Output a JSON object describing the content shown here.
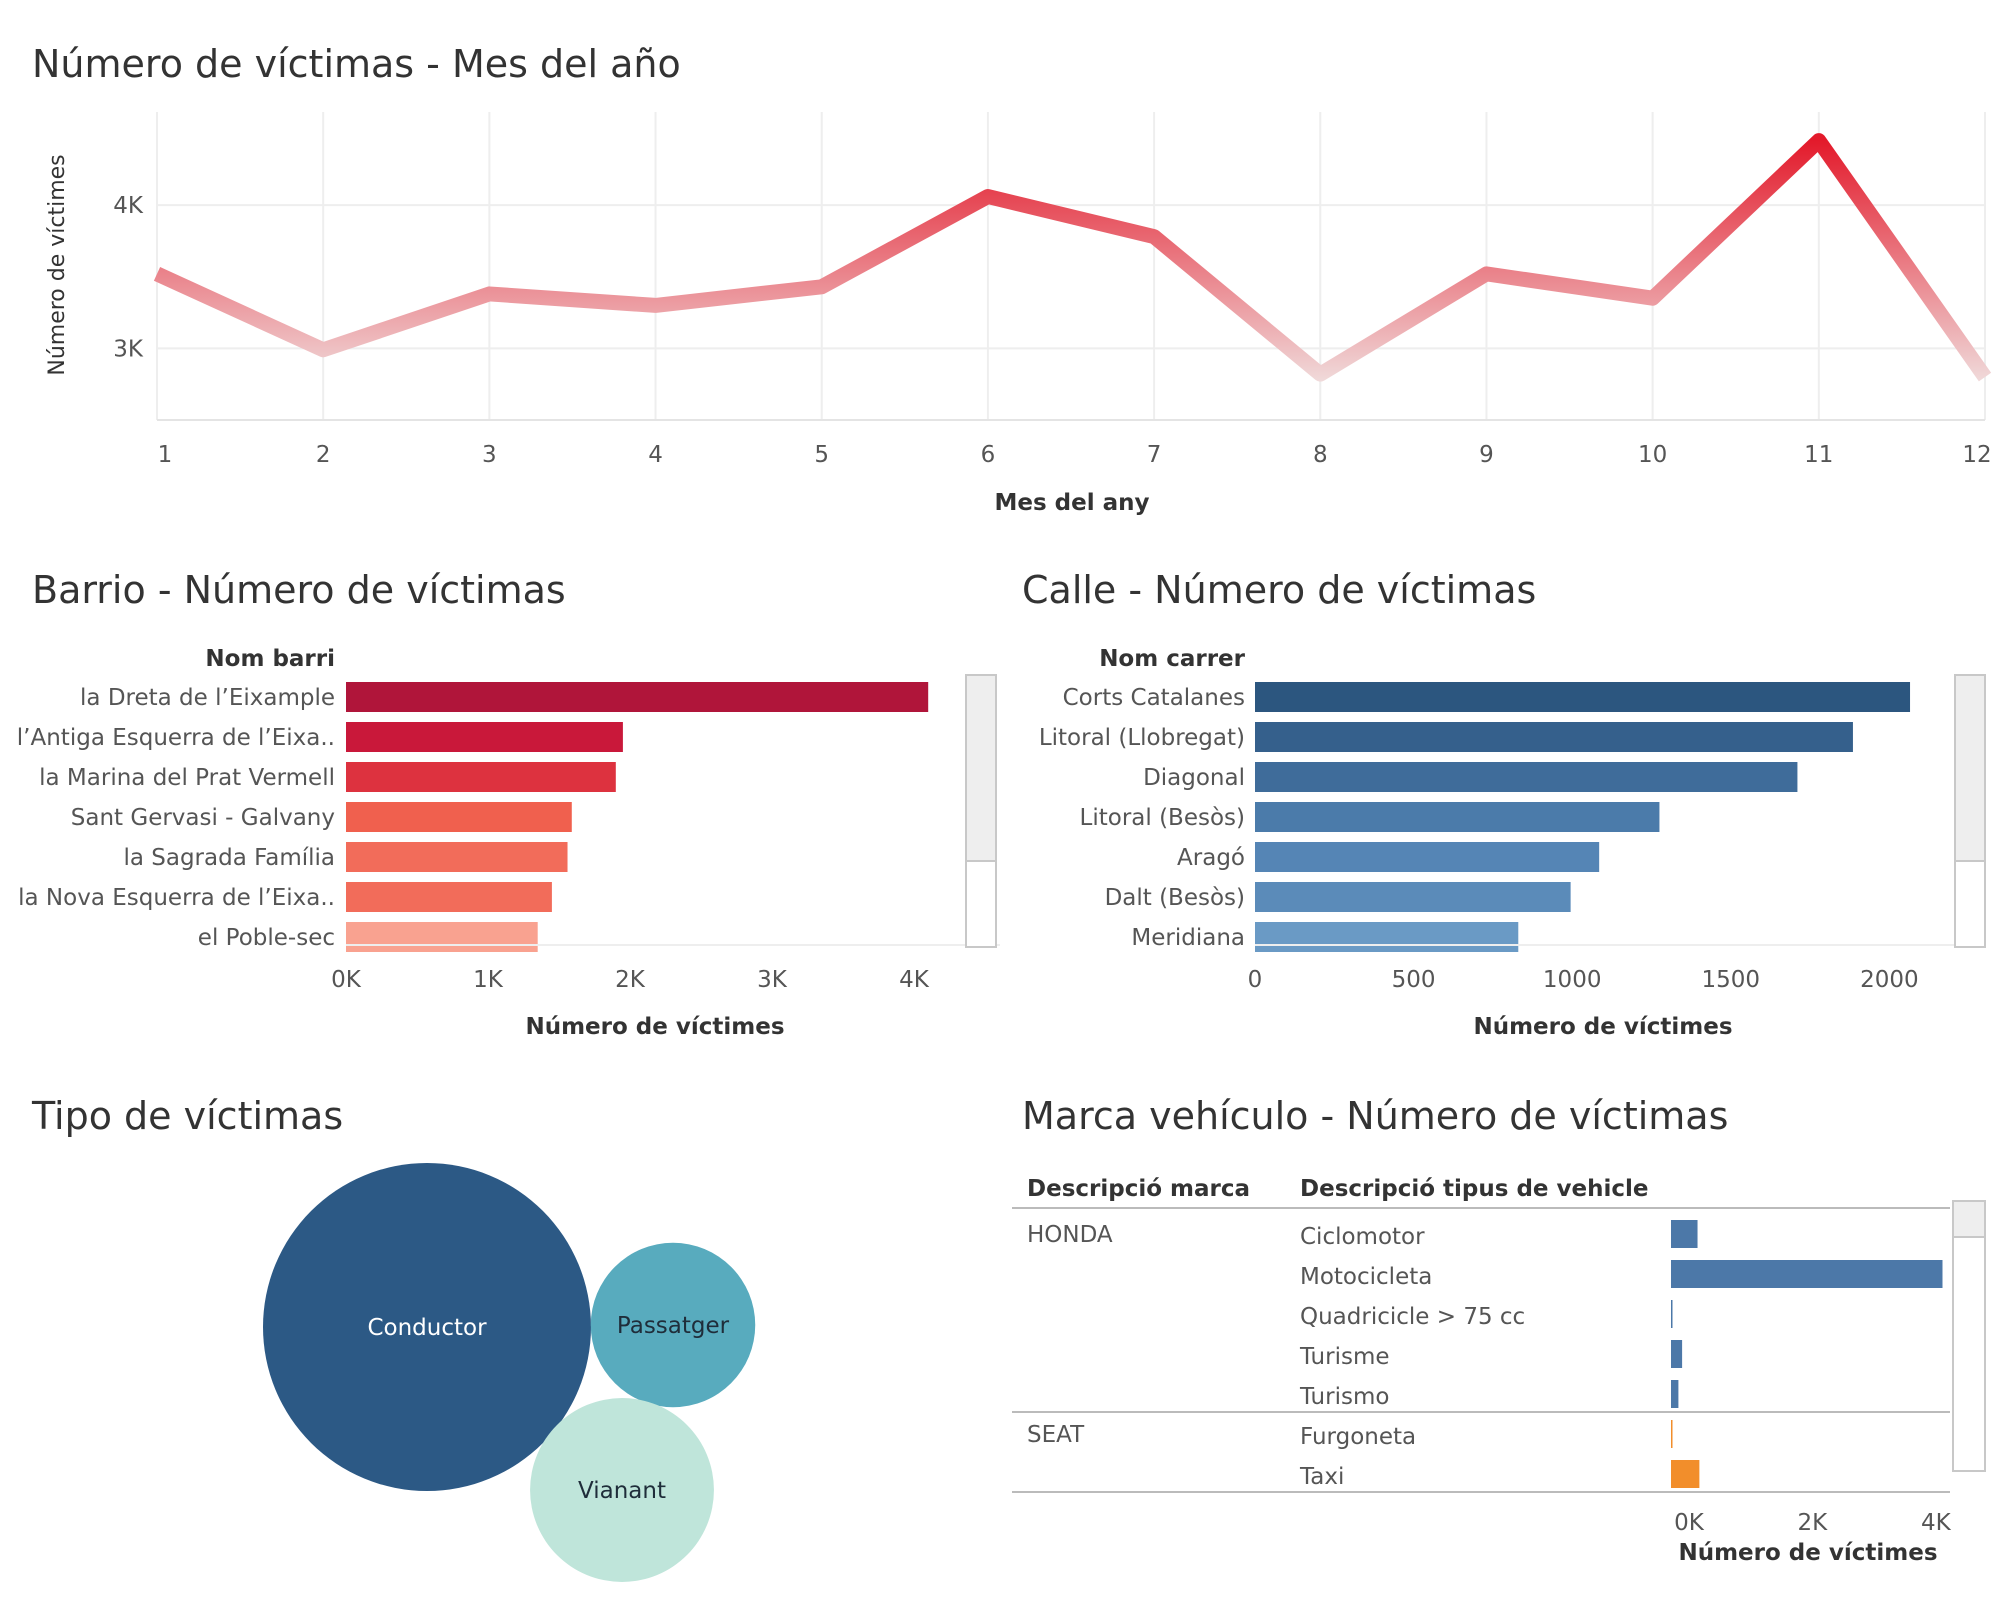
{
  "dashboard": {
    "monthly": {
      "title": "Número de víctimas - Mes del año",
      "chart_data": {
        "type": "line",
        "x": [
          1,
          2,
          3,
          4,
          5,
          6,
          7,
          8,
          9,
          10,
          11,
          12
        ],
        "values": [
          3520,
          2990,
          3380,
          3300,
          3430,
          4060,
          3780,
          2820,
          3520,
          3350,
          4450,
          2800
        ],
        "xlabel": "Mes del any",
        "ylabel": "Número de víctimes",
        "yticks": [
          "3K",
          "4K"
        ],
        "ylim": [
          2500,
          4650
        ],
        "color_low": "#f0dcdc",
        "color_high": "#e31a2b"
      }
    },
    "barrio": {
      "title": "Barrio - Número de víctimas",
      "chart_data": {
        "type": "bar",
        "orientation": "horizontal",
        "column_header": "Nom barri",
        "categories": [
          "la Dreta de l’Eixample",
          "l’Antiga Esquerra de l’Eixa..",
          "la Marina del Prat Vermell",
          "Sant Gervasi - Galvany",
          "la Sagrada Família",
          "la Nova Esquerra de l’Eixa..",
          "el Poble-sec"
        ],
        "values": [
          4100,
          1950,
          1900,
          1590,
          1560,
          1450,
          1350
        ],
        "colors": [
          "#b0153a",
          "#c9183a",
          "#dd323f",
          "#f0604e",
          "#f26c5a",
          "#f26c5a",
          "#f9a290"
        ],
        "xlabel": "Número de víctimes",
        "xticks": [
          "0K",
          "1K",
          "2K",
          "3K",
          "4K"
        ],
        "xlim": [
          0,
          4500
        ]
      }
    },
    "calle": {
      "title": "Calle - Número de víctimas",
      "chart_data": {
        "type": "bar",
        "orientation": "horizontal",
        "column_header": "Nom carrer",
        "categories": [
          "Corts Catalanes",
          "Litoral (Llobregat)",
          "Diagonal",
          "Litoral (Besòs)",
          "Aragó",
          "Dalt (Besòs)",
          "Meridiana"
        ],
        "values": [
          2065,
          1885,
          1710,
          1275,
          1085,
          995,
          830
        ],
        "colors": [
          "#2c567f",
          "#35608c",
          "#3f6c9a",
          "#4b7baa",
          "#5585b5",
          "#5b8bb9",
          "#6a9ac5"
        ],
        "xlabel": "Número de víctimes",
        "xticks": [
          "0",
          "500",
          "1000",
          "1500",
          "2000"
        ],
        "xlim": [
          0,
          2150
        ]
      }
    },
    "tipo": {
      "title": "Tipo de víctimas",
      "chart_data": {
        "type": "bubble",
        "categories": [
          "Conductor",
          "Passatger",
          "Vianant"
        ],
        "values": [
          35000,
          8800,
          11000
        ],
        "colors": [
          "#2c5985",
          "#58abbe",
          "#bfe5da"
        ],
        "label_colors": [
          "#ffffff",
          "#1f2d3a",
          "#1f2d3a"
        ]
      }
    },
    "marca": {
      "title": "Marca vehículo - Número de víctimas",
      "chart_data": {
        "type": "bar",
        "orientation": "horizontal",
        "column_headers": [
          "Descripció marca",
          "Descripció tipus de vehicle"
        ],
        "groups": [
          {
            "brand": "HONDA",
            "color": "#4c78a8",
            "rows": [
              {
                "label": "Ciclomotor",
                "value": 430
              },
              {
                "label": "Motocicleta",
                "value": 4400
              },
              {
                "label": "Quadricicle > 75 cc",
                "value": 20
              },
              {
                "label": "Turisme",
                "value": 180
              },
              {
                "label": "Turismo",
                "value": 120
              }
            ]
          },
          {
            "brand": "SEAT",
            "color": "#f28e2b",
            "rows": [
              {
                "label": "Furgoneta",
                "value": 20
              },
              {
                "label": "Taxi",
                "value": 460
              }
            ]
          }
        ],
        "xlabel": "Número de víctimes",
        "xticks": [
          "0K",
          "2K",
          "4K"
        ],
        "xlim": [
          0,
          4700
        ]
      }
    }
  }
}
